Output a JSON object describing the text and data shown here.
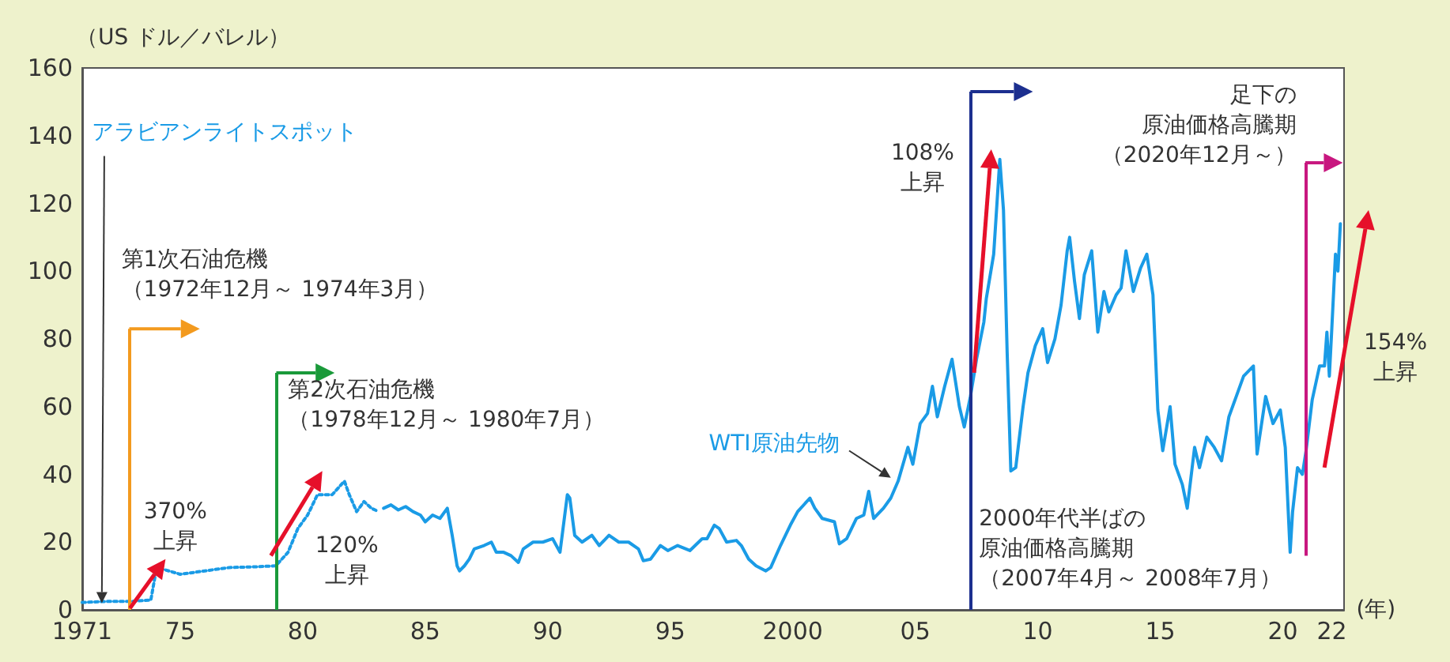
{
  "chart_data": {
    "type": "line",
    "xlabel": "(年)",
    "ylabel": "（US ドル／バレル）",
    "marker": "none",
    "xlim": [
      1971,
      2022.5
    ],
    "xticks": [
      1971,
      {
        "value": 1975,
        "label": "75"
      },
      {
        "value": 1980,
        "label": "80"
      },
      {
        "value": 1985,
        "label": "85"
      },
      {
        "value": 1990,
        "label": "90"
      },
      {
        "value": 1995,
        "label": "95"
      },
      2000,
      {
        "value": 2005,
        "label": "05"
      },
      {
        "value": 2010,
        "label": "10"
      },
      {
        "value": 2015,
        "label": "15"
      },
      {
        "value": 2020,
        "label": "20"
      },
      {
        "value": 2022,
        "label": "22"
      }
    ],
    "ylim": [
      0,
      160
    ],
    "yticks": [
      0,
      20,
      40,
      60,
      80,
      100,
      120,
      140,
      160
    ],
    "series": [
      {
        "name": "アラビアンライトスポット",
        "color": "#1a9be6",
        "line_style": "dotted",
        "x": [
          1971,
          1972,
          1973,
          1973.8,
          1974,
          1974.3,
          1975,
          1976,
          1977,
          1978,
          1978.9,
          1979.4,
          1979.8,
          1980.2,
          1980.6,
          1981.2,
          1981.7,
          1981.9,
          1982.2,
          1982.5,
          1982.8,
          1983.1
        ],
        "values": [
          2.2,
          2.5,
          2.5,
          2.9,
          11,
          12,
          10.5,
          11.5,
          12.5,
          12.7,
          13,
          17,
          24,
          28,
          34,
          34,
          38,
          34,
          29,
          32,
          30,
          29
        ]
      },
      {
        "name": "WTI原油先物",
        "color": "#1a9be6",
        "line_style": "solid",
        "x": [
          1983.3,
          1983.6,
          1983.9,
          1984.2,
          1984.5,
          1984.8,
          1985,
          1985.3,
          1985.6,
          1985.9,
          1986.1,
          1986.3,
          1986.4,
          1986.6,
          1986.8,
          1987,
          1987.4,
          1987.7,
          1987.9,
          1988.2,
          1988.5,
          1988.8,
          1989,
          1989.4,
          1989.8,
          1990.2,
          1990.5,
          1990.8,
          1990.9,
          1991.1,
          1991.4,
          1991.8,
          1992.1,
          1992.5,
          1992.9,
          1993.3,
          1993.7,
          1993.9,
          1994.2,
          1994.6,
          1994.9,
          1995.3,
          1995.8,
          1996.3,
          1996.5,
          1996.8,
          1997,
          1997.3,
          1997.7,
          1997.9,
          1998.2,
          1998.5,
          1998.9,
          1999.1,
          1999.5,
          1999.9,
          2000.2,
          2000.7,
          2000.9,
          2001.2,
          2001.7,
          2001.9,
          2002.2,
          2002.6,
          2002.9,
          2003.1,
          2003.3,
          2003.7,
          2004,
          2004.3,
          2004.7,
          2004.9,
          2005.2,
          2005.5,
          2005.7,
          2005.9,
          2006.2,
          2006.5,
          2006.8,
          2007,
          2007.25,
          2007.5,
          2007.8,
          2007.9,
          2008.2,
          2008.45,
          2008.6,
          2008.75,
          2008.9,
          2009.1,
          2009.4,
          2009.6,
          2009.9,
          2010.2,
          2010.4,
          2010.7,
          2010.95,
          2011.2,
          2011.3,
          2011.5,
          2011.7,
          2011.9,
          2012.2,
          2012.45,
          2012.7,
          2012.9,
          2013.2,
          2013.4,
          2013.6,
          2013.9,
          2014.2,
          2014.45,
          2014.7,
          2014.9,
          2015.1,
          2015.4,
          2015.6,
          2015.9,
          2016.1,
          2016.4,
          2016.6,
          2016.9,
          2017.2,
          2017.5,
          2017.8,
          2018.1,
          2018.4,
          2018.8,
          2018.95,
          2019.3,
          2019.6,
          2019.9,
          2020.1,
          2020.3,
          2020.4,
          2020.6,
          2020.8,
          2020.95,
          2021.2,
          2021.5,
          2021.7,
          2021.8,
          2021.9,
          2022,
          2022.15,
          2022.25,
          2022.35
        ],
        "values": [
          30,
          31,
          29.5,
          30.5,
          29,
          28,
          26,
          28,
          27,
          30,
          22,
          13,
          11.5,
          13,
          15,
          18,
          19,
          20,
          17,
          17,
          16,
          14,
          18,
          20,
          20,
          21,
          17,
          34,
          33,
          22,
          20,
          22,
          19,
          22,
          20,
          20,
          18,
          14.5,
          15,
          19,
          17.5,
          19,
          17.5,
          21,
          21,
          25,
          24,
          20,
          20.5,
          19,
          15,
          13,
          11.5,
          12.5,
          19,
          25,
          29,
          33,
          30,
          27,
          26,
          19.5,
          21,
          27,
          28,
          35,
          27,
          30,
          33,
          38,
          48,
          43,
          55,
          58,
          66,
          57,
          66,
          74,
          60,
          54,
          63,
          74,
          85,
          92,
          105,
          133,
          118,
          76,
          41,
          42,
          60,
          70,
          78,
          83,
          73,
          80,
          90,
          106,
          110,
          97,
          86,
          99,
          106,
          82,
          94,
          88,
          93,
          95,
          106,
          94,
          101,
          105,
          93,
          59,
          47,
          60,
          43,
          37,
          30,
          48,
          42,
          51,
          48,
          44,
          57,
          63,
          69,
          72,
          46,
          63,
          55,
          59,
          48,
          17,
          29,
          42,
          40,
          47,
          62,
          72,
          72,
          82,
          69,
          83,
          105,
          100,
          114
        ]
      }
    ],
    "ref_lines": [
      {
        "axis": "x",
        "value": 1972.92,
        "label": "第1次石油危機（1972年12月～ 1974年3月）",
        "color": "#f39a1e",
        "line_style": "solid"
      },
      {
        "axis": "x",
        "value": 1978.92,
        "label": "第2次石油危機（1978年12月～ 1980年7月）",
        "color": "#1a9a3a",
        "line_style": "solid"
      },
      {
        "axis": "x",
        "value": 2007.25,
        "label": "2000年代半ばの原油価格高騰期（2007年4月～ 2008年7月）",
        "color": "#1c2f8f",
        "line_style": "solid"
      },
      {
        "axis": "x",
        "value": 2020.92,
        "label": "足下の原油価格高騰期（2020年12月～）",
        "color": "#c8177f",
        "line_style": "solid"
      }
    ],
    "annotations": [
      "370%\n上昇",
      "120%\n上昇",
      "108%\n上昇",
      "154%\n上昇"
    ]
  }
}
